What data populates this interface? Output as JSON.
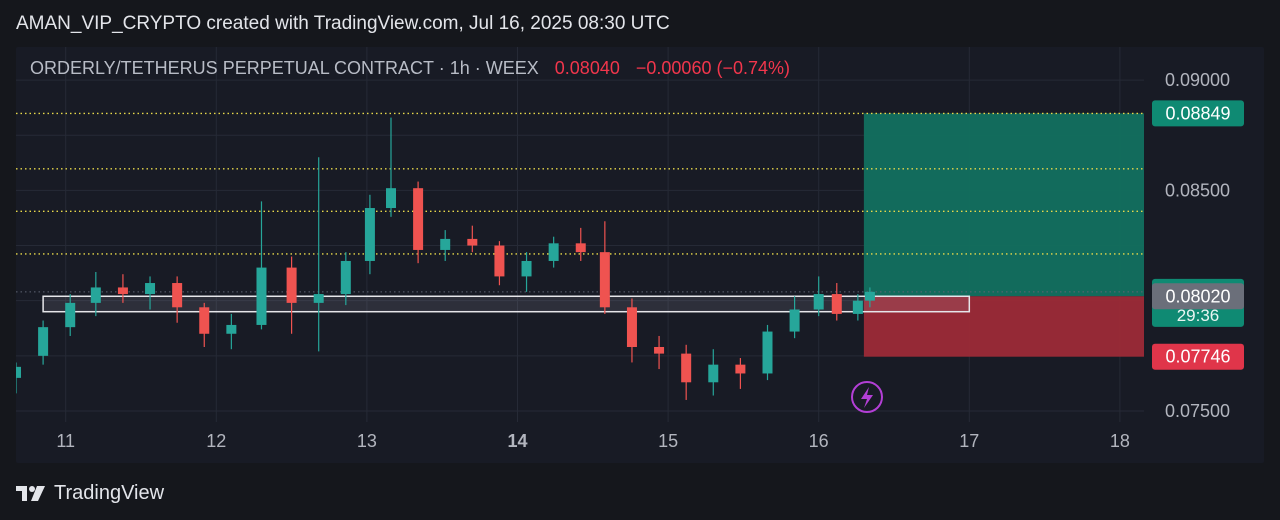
{
  "caption": "AMAN_VIP_CRYPTO created with TradingView.com, Jul 16, 2025 08:30 UTC",
  "legend": {
    "symbol": "ORDERLY/TETHERUS PERPETUAL CONTRACT · 1h · WEEX",
    "price": "0.08040",
    "change": "−0.00060 (−0.74%)"
  },
  "footer": {
    "brand": "TradingView",
    "logo_icon": "tradingview-logo-icon"
  },
  "colors": {
    "up": "#26a69a",
    "down": "#ef5350",
    "neg_text": "#f2364c",
    "profit_zone": "#12705f",
    "loss_zone": "#9c2a37",
    "grid": "#262a36",
    "level_line": "#e8d94a",
    "axis_text": "#b2b5be"
  },
  "chart_data": {
    "type": "candlestick",
    "title": "ORDERLY/TETHERUS PERPETUAL CONTRACT · 1h · WEEX",
    "x_ticks": [
      "11",
      "12",
      "13",
      "14",
      "15",
      "16",
      "17",
      "18"
    ],
    "x_tick_days": [
      11,
      12,
      13,
      14,
      15,
      16,
      17,
      18
    ],
    "y_ticks": [
      "0.09000",
      "0.08500",
      "0.07500"
    ],
    "y_tick_values": [
      0.09,
      0.085,
      0.075
    ],
    "ylim": [
      0.0745,
      0.0915
    ],
    "xlim_days": [
      10.67,
      18.16
    ],
    "price_tags": [
      {
        "label": "0.08849",
        "value": 0.08849,
        "kind": "target"
      },
      {
        "label": "0.08040",
        "value": 0.0804,
        "kind": "last",
        "countdown": "29:36"
      },
      {
        "label": "0.08020",
        "value": 0.0802,
        "kind": "entry"
      },
      {
        "label": "0.07746",
        "value": 0.07746,
        "kind": "stop"
      }
    ],
    "horizontal_levels": [
      0.08849,
      0.08598,
      0.08405,
      0.08212
    ],
    "support_box": {
      "from_day": 10.85,
      "to_day": 17.0,
      "top": 0.0802,
      "bottom": 0.0795
    },
    "position": {
      "from_day": 16.3,
      "to_day": 18.16,
      "target": 0.08849,
      "entry": 0.0802,
      "stop": 0.07746
    },
    "series": [
      {
        "day": 10.67,
        "o": 0.0765,
        "h": 0.0772,
        "l": 0.0758,
        "c": 0.077
      },
      {
        "day": 10.85,
        "o": 0.0775,
        "h": 0.0791,
        "l": 0.0771,
        "c": 0.0788
      },
      {
        "day": 11.03,
        "o": 0.0788,
        "h": 0.0803,
        "l": 0.0784,
        "c": 0.0799
      },
      {
        "day": 11.2,
        "o": 0.0799,
        "h": 0.0813,
        "l": 0.0793,
        "c": 0.0806
      },
      {
        "day": 11.38,
        "o": 0.0806,
        "h": 0.0812,
        "l": 0.0799,
        "c": 0.0803
      },
      {
        "day": 11.56,
        "o": 0.0803,
        "h": 0.0811,
        "l": 0.0796,
        "c": 0.0808
      },
      {
        "day": 11.74,
        "o": 0.0808,
        "h": 0.0811,
        "l": 0.079,
        "c": 0.0797
      },
      {
        "day": 11.92,
        "o": 0.0797,
        "h": 0.0799,
        "l": 0.0779,
        "c": 0.0785
      },
      {
        "day": 12.1,
        "o": 0.0785,
        "h": 0.0794,
        "l": 0.0778,
        "c": 0.0789
      },
      {
        "day": 12.3,
        "o": 0.0789,
        "h": 0.0845,
        "l": 0.0787,
        "c": 0.0815
      },
      {
        "day": 12.5,
        "o": 0.0815,
        "h": 0.082,
        "l": 0.0785,
        "c": 0.0799
      },
      {
        "day": 12.68,
        "o": 0.0799,
        "h": 0.0865,
        "l": 0.0777,
        "c": 0.0803
      },
      {
        "day": 12.86,
        "o": 0.0803,
        "h": 0.0822,
        "l": 0.0798,
        "c": 0.0818
      },
      {
        "day": 13.02,
        "o": 0.0818,
        "h": 0.0848,
        "l": 0.0812,
        "c": 0.0842
      },
      {
        "day": 13.16,
        "o": 0.0842,
        "h": 0.0883,
        "l": 0.0838,
        "c": 0.0851
      },
      {
        "day": 13.34,
        "o": 0.0851,
        "h": 0.0854,
        "l": 0.0817,
        "c": 0.0823
      },
      {
        "day": 13.52,
        "o": 0.0823,
        "h": 0.0832,
        "l": 0.0818,
        "c": 0.0828
      },
      {
        "day": 13.7,
        "o": 0.0828,
        "h": 0.0834,
        "l": 0.0822,
        "c": 0.0825
      },
      {
        "day": 13.88,
        "o": 0.0825,
        "h": 0.0827,
        "l": 0.0807,
        "c": 0.0811
      },
      {
        "day": 14.06,
        "o": 0.0811,
        "h": 0.0822,
        "l": 0.0804,
        "c": 0.0818
      },
      {
        "day": 14.24,
        "o": 0.0818,
        "h": 0.0829,
        "l": 0.0815,
        "c": 0.0826
      },
      {
        "day": 14.42,
        "o": 0.0826,
        "h": 0.0833,
        "l": 0.0818,
        "c": 0.0822
      },
      {
        "day": 14.58,
        "o": 0.0822,
        "h": 0.0836,
        "l": 0.0794,
        "c": 0.0797
      },
      {
        "day": 14.76,
        "o": 0.0797,
        "h": 0.0801,
        "l": 0.0772,
        "c": 0.0779
      },
      {
        "day": 14.94,
        "o": 0.0779,
        "h": 0.0784,
        "l": 0.0769,
        "c": 0.0776
      },
      {
        "day": 15.12,
        "o": 0.0776,
        "h": 0.078,
        "l": 0.0755,
        "c": 0.0763
      },
      {
        "day": 15.3,
        "o": 0.0763,
        "h": 0.0778,
        "l": 0.0757,
        "c": 0.0771
      },
      {
        "day": 15.48,
        "o": 0.0771,
        "h": 0.0774,
        "l": 0.076,
        "c": 0.0767
      },
      {
        "day": 15.66,
        "o": 0.0767,
        "h": 0.0789,
        "l": 0.0764,
        "c": 0.0786
      },
      {
        "day": 15.84,
        "o": 0.0786,
        "h": 0.0802,
        "l": 0.0783,
        "c": 0.0796
      },
      {
        "day": 16.0,
        "o": 0.0796,
        "h": 0.0811,
        "l": 0.0793,
        "c": 0.0803
      },
      {
        "day": 16.12,
        "o": 0.0803,
        "h": 0.0808,
        "l": 0.0791,
        "c": 0.0794
      },
      {
        "day": 16.26,
        "o": 0.0794,
        "h": 0.0803,
        "l": 0.0791,
        "c": 0.08
      },
      {
        "day": 16.34,
        "o": 0.08,
        "h": 0.0806,
        "l": 0.0797,
        "c": 0.0804
      }
    ]
  }
}
